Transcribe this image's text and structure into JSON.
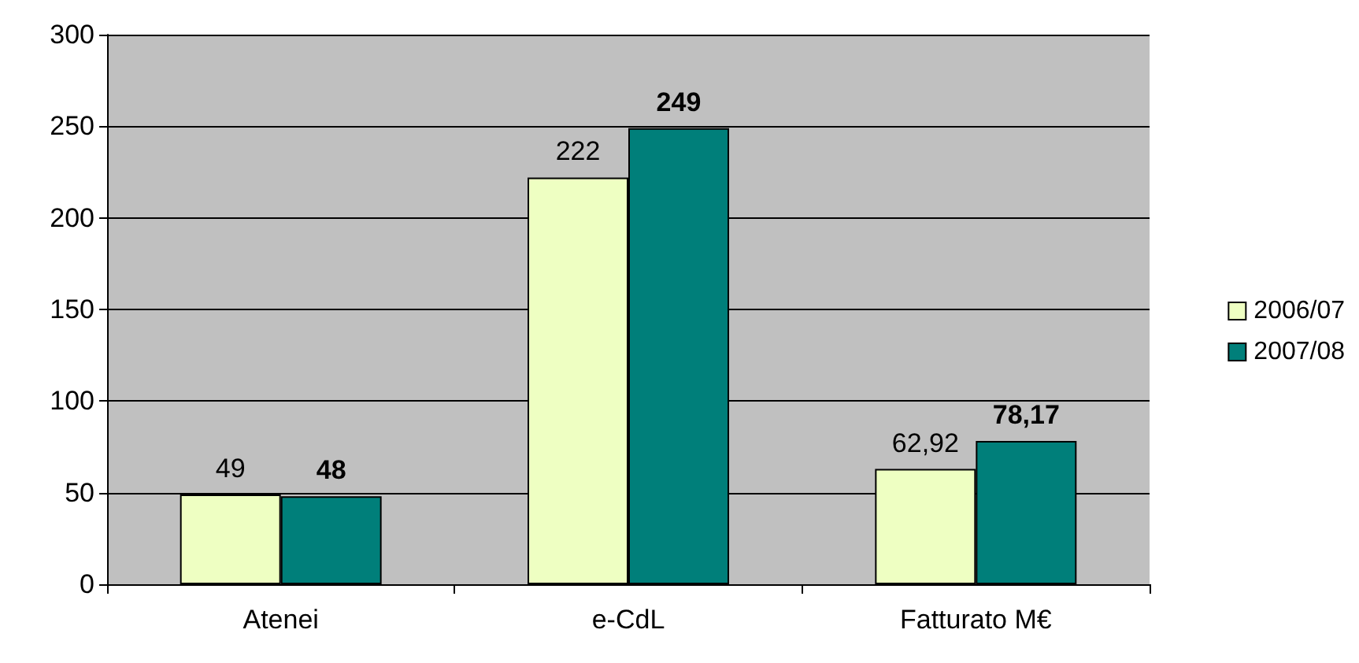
{
  "chart_data": {
    "type": "bar",
    "categories": [
      "Atenei",
      "e-CdL",
      "Fatturato M€"
    ],
    "series": [
      {
        "name": "2006/07",
        "color": "#eeffc2",
        "values": [
          49,
          222,
          62.92
        ],
        "value_labels": [
          "49",
          "222",
          "62,92"
        ]
      },
      {
        "name": "2007/08",
        "color": "#007f7a",
        "values": [
          48,
          249,
          78.17
        ],
        "value_labels": [
          "48",
          "249",
          "78,17"
        ]
      }
    ],
    "ylim": [
      0,
      300
    ],
    "yticks": [
      0,
      50,
      100,
      150,
      200,
      250,
      300
    ],
    "grid": "y",
    "legend": "right"
  }
}
